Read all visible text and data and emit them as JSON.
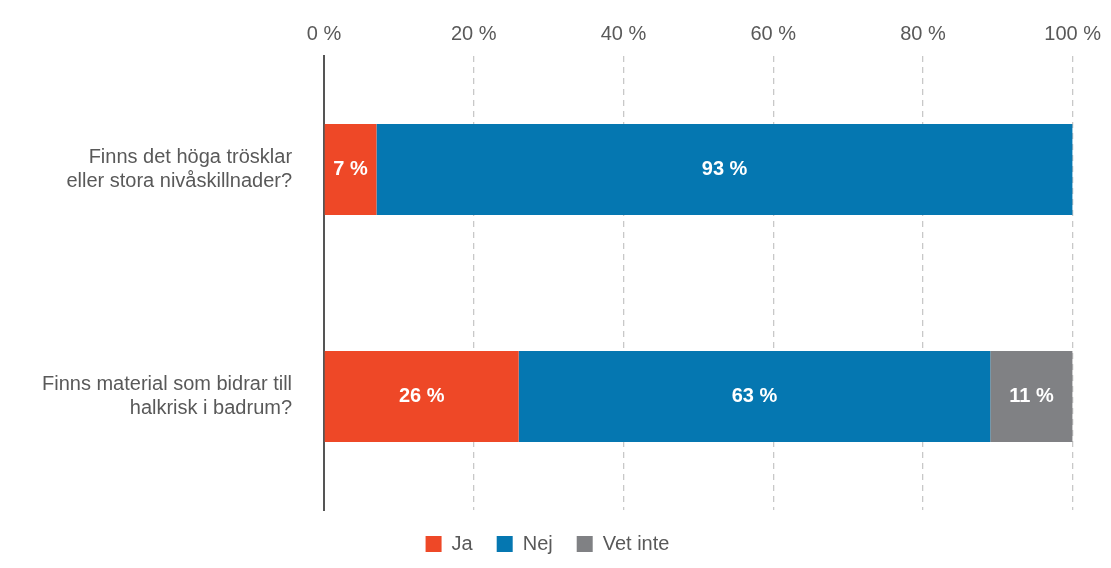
{
  "chart_data": {
    "type": "bar",
    "orientation": "horizontal",
    "stacked": true,
    "categories": [
      "Finns det höga trösklar\neller stora nivåskillnader?",
      "Finns material som bidrar till\nhalkrisk i badrum?"
    ],
    "series": [
      {
        "name": "Ja",
        "color": "#ee4827",
        "values": [
          7,
          26
        ],
        "value_labels": [
          "7 %",
          "26 %"
        ]
      },
      {
        "name": "Nej",
        "color": "#0577b1",
        "values": [
          93,
          63
        ],
        "value_labels": [
          "93 %",
          "63 %"
        ]
      },
      {
        "name": "Vet inte",
        "color": "#808184",
        "values": [
          null,
          11
        ],
        "value_labels": [
          null,
          "11 %"
        ]
      }
    ],
    "xlim": [
      0,
      100
    ],
    "xticks": [
      {
        "value": 0,
        "label": "0 %"
      },
      {
        "value": 20,
        "label": "20 %"
      },
      {
        "value": 40,
        "label": "40 %"
      },
      {
        "value": 60,
        "label": "60 %"
      },
      {
        "value": 80,
        "label": "80 %"
      },
      {
        "value": 100,
        "label": "100 %"
      }
    ],
    "grid": "x",
    "legend": "bottom"
  }
}
